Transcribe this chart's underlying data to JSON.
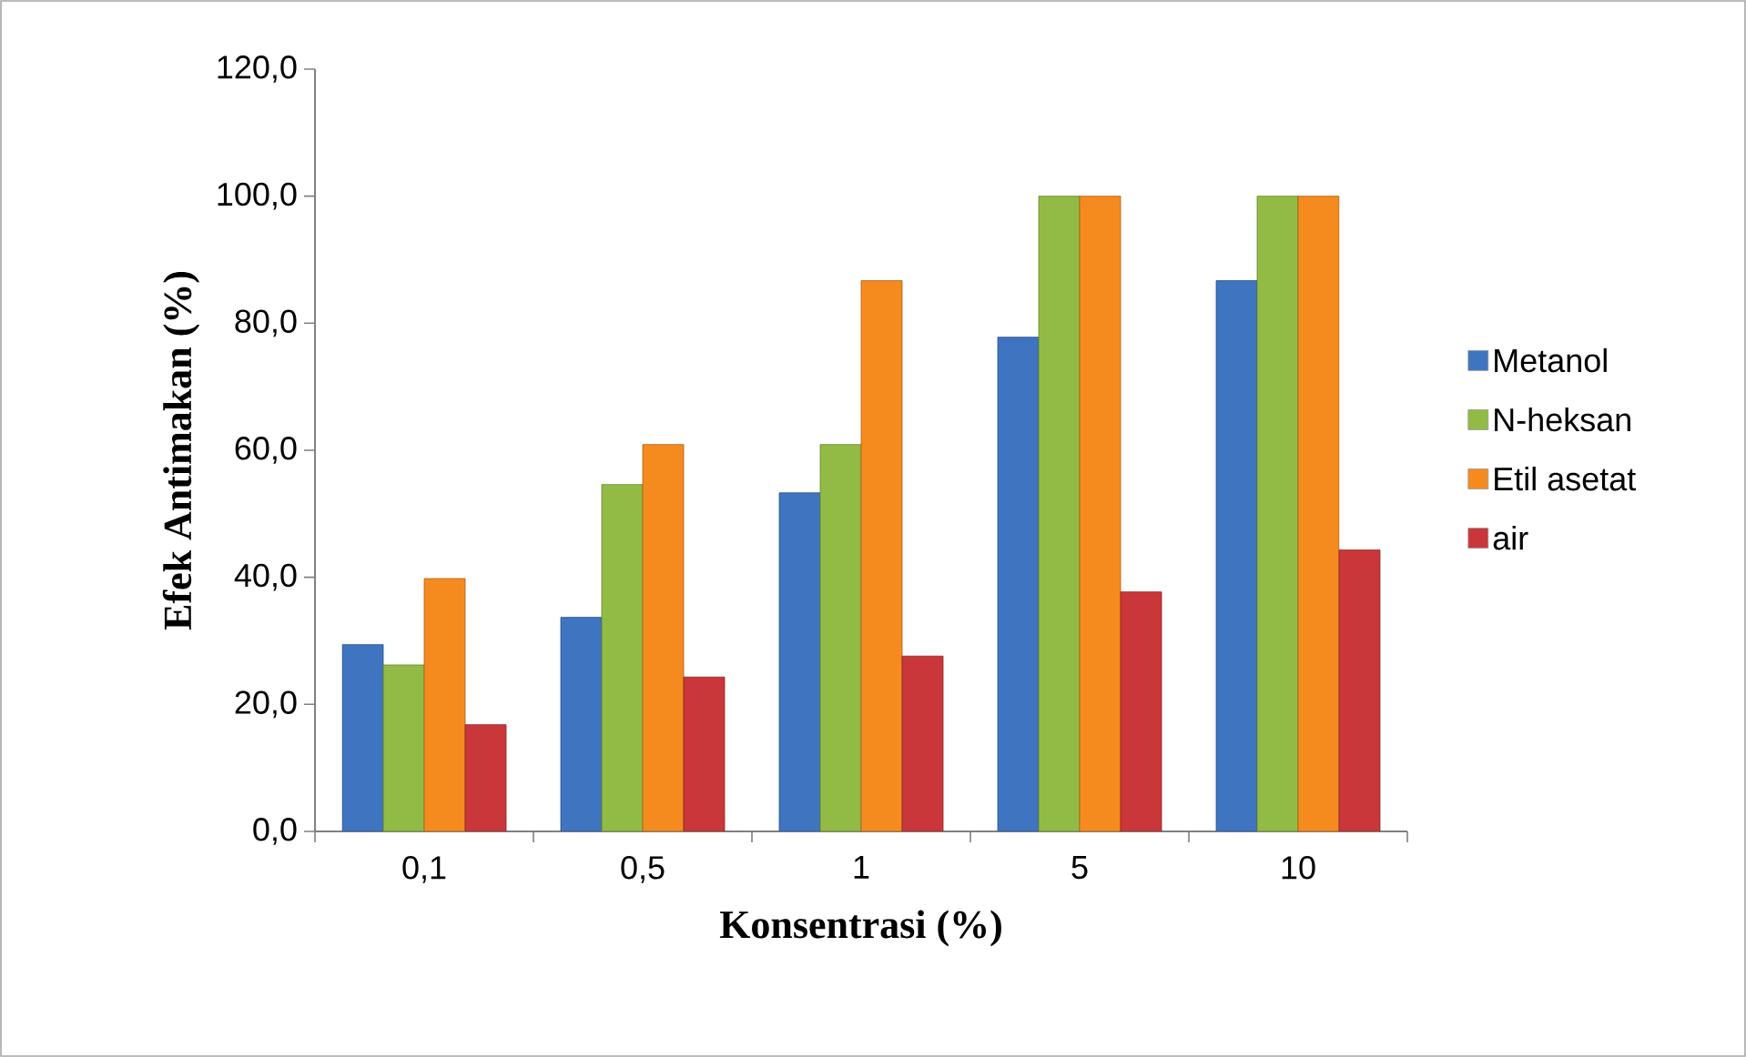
{
  "chart_data": {
    "type": "bar",
    "xlabel": "Konsentrasi (%)",
    "ylabel": "Efek Antimakan  (%)",
    "categories": [
      "0,1",
      "0,5",
      "1",
      "5",
      "10"
    ],
    "series": [
      {
        "name": "Metanol",
        "color": "#3f74c0",
        "values": [
          29.4,
          33.7,
          53.3,
          77.8,
          86.7
        ]
      },
      {
        "name": "N-heksan",
        "color": "#92bb45",
        "values": [
          26.2,
          54.6,
          60.9,
          100,
          100
        ]
      },
      {
        "name": "Etil asetat",
        "color": "#f58b1f",
        "values": [
          39.8,
          60.9,
          86.7,
          100,
          100
        ]
      },
      {
        "name": "air",
        "color": "#c9373a",
        "values": [
          16.8,
          24.3,
          27.6,
          37.7,
          44.3
        ]
      }
    ],
    "ylim": [
      0,
      120
    ],
    "yticks": [
      {
        "value": 0,
        "label": "0,0"
      },
      {
        "value": 20,
        "label": "20,0"
      },
      {
        "value": 40,
        "label": "40,0"
      },
      {
        "value": 60,
        "label": "60,0"
      },
      {
        "value": 80,
        "label": "80,0"
      },
      {
        "value": 100,
        "label": "100,0"
      },
      {
        "value": 120,
        "label": "120,0"
      }
    ],
    "legend": "right"
  }
}
